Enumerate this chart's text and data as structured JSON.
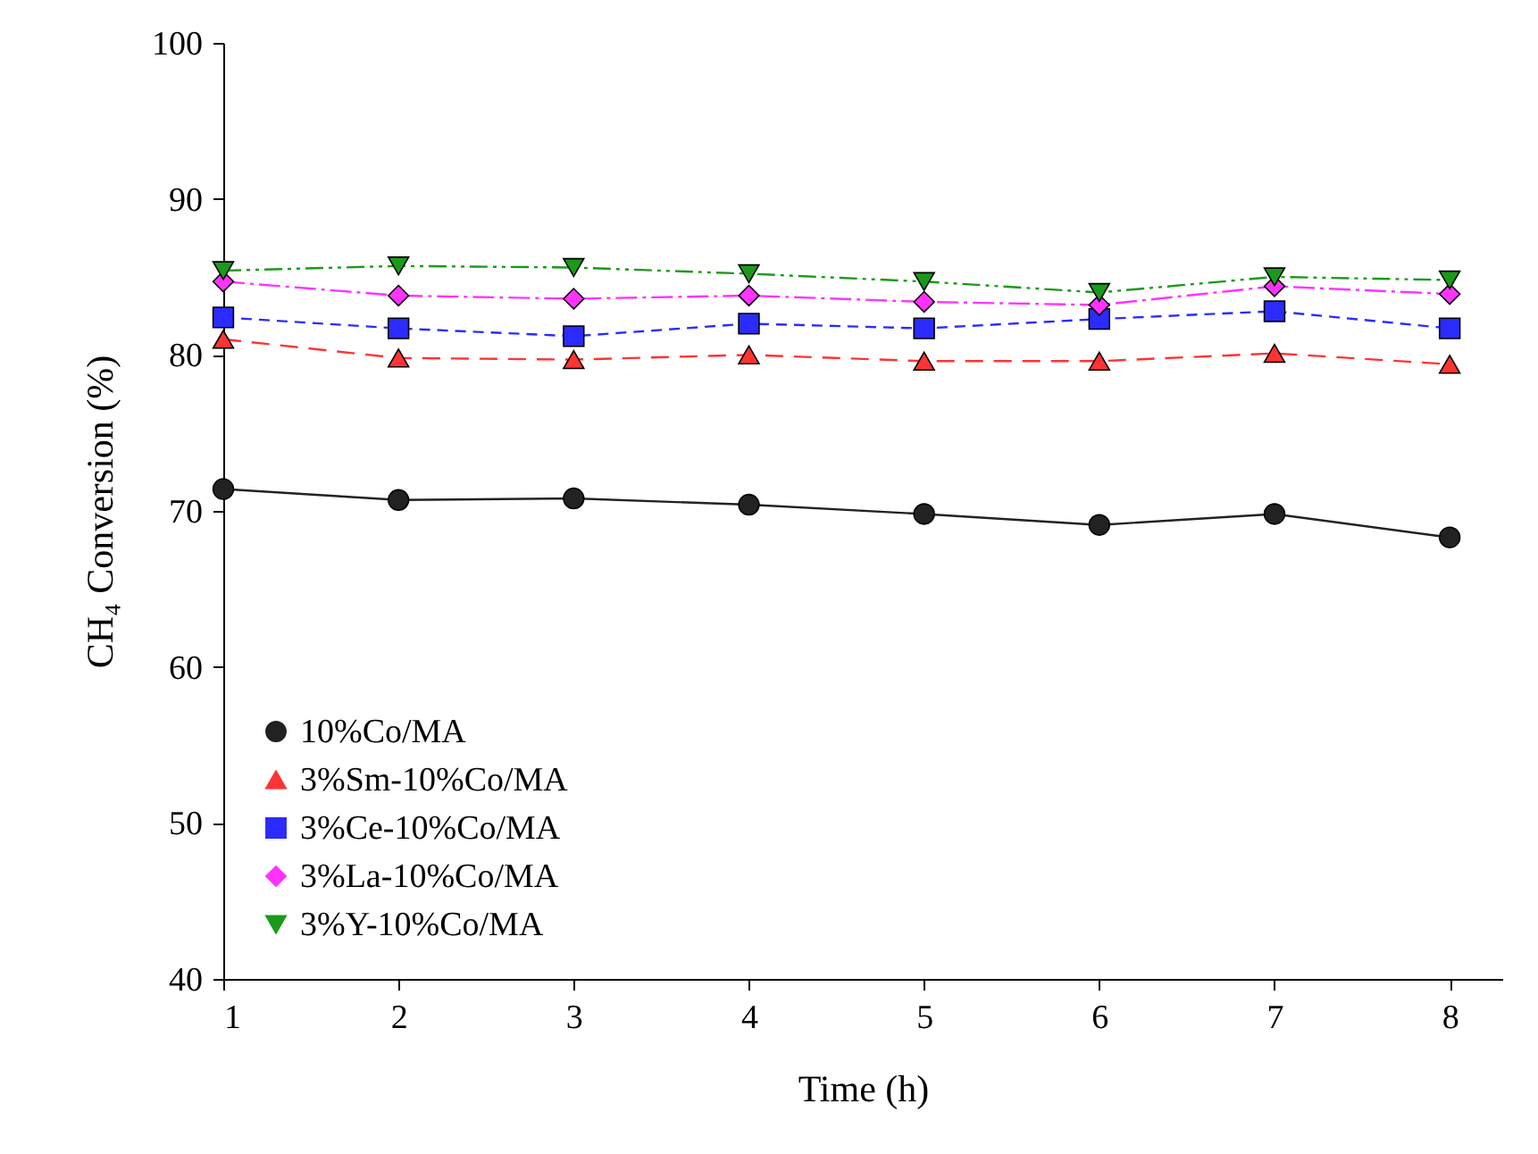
{
  "chart_data": {
    "type": "line",
    "xlabel": "Time (h)",
    "ylabel": "CH₄ Conversion (%)",
    "x": [
      1,
      2,
      3,
      4,
      5,
      6,
      7,
      8
    ],
    "series": [
      {
        "name": "10%Co/MA",
        "color": "#222222",
        "marker": "circle",
        "line_style": "solid",
        "values": [
          71.4,
          70.7,
          70.8,
          70.4,
          69.8,
          69.1,
          69.8,
          68.3
        ]
      },
      {
        "name": "3%Sm-10%Co/MA",
        "color": "#ff3333",
        "marker": "triangle",
        "line_style": "dashed",
        "values": [
          81.0,
          79.8,
          79.7,
          80.0,
          79.6,
          79.6,
          80.1,
          79.4
        ]
      },
      {
        "name": "3%Ce-10%Co/MA",
        "color": "#2b2bff",
        "marker": "square",
        "line_style": "dashed",
        "values": [
          82.4,
          81.7,
          81.2,
          82.0,
          81.7,
          82.3,
          82.8,
          81.7
        ]
      },
      {
        "name": "3%La-10%Co/MA",
        "color": "#ff33ff",
        "marker": "diamond",
        "line_style": "dashed",
        "values": [
          84.7,
          83.8,
          83.6,
          83.8,
          83.4,
          83.2,
          84.4,
          83.9
        ]
      },
      {
        "name": "3%Y-10%Co/MA",
        "color": "#1a9a1a",
        "marker": "triangle-down",
        "line_style": "dashed",
        "values": [
          85.4,
          85.7,
          85.6,
          85.2,
          84.7,
          84.0,
          85.0,
          84.8
        ]
      }
    ],
    "xlim": [
      1,
      8.3
    ],
    "xticks": [
      1,
      2,
      3,
      4,
      5,
      6,
      7,
      8
    ],
    "ylim": [
      40,
      100
    ],
    "yticks": [
      40,
      50,
      60,
      70,
      80,
      90,
      100
    ],
    "grid": false,
    "legend": "bottom left"
  }
}
